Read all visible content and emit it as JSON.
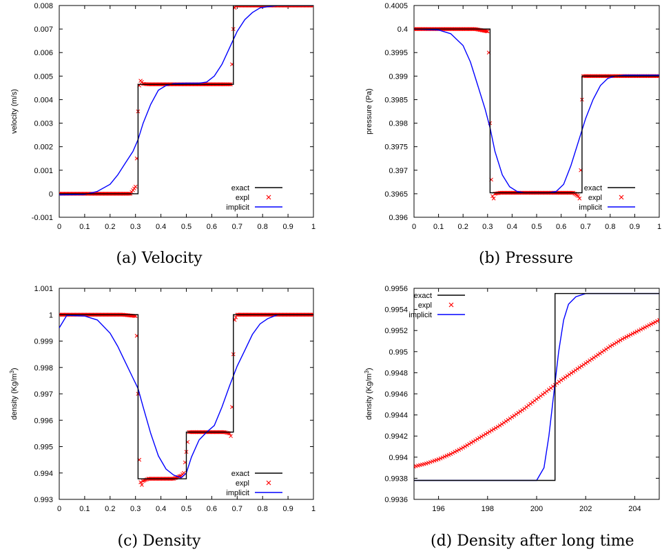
{
  "captions": [
    "(a) Velocity",
    "(b) Pressure",
    "(c) Density",
    "(d) Density after long time"
  ],
  "legend_labels": {
    "exact": "exact",
    "expl": "expl",
    "implicit": "implicit"
  },
  "colors": {
    "exact": "#000000",
    "expl": "#ff0000",
    "implicit": "#0000ff"
  },
  "chart_data": [
    {
      "type": "line",
      "caption": "(a) Velocity",
      "xlabel": "",
      "ylabel": "velocity (m/s)",
      "xlim": [
        0,
        1
      ],
      "ylim": [
        -0.001,
        0.008
      ],
      "xticks": [
        "0",
        "0.1",
        "0.2",
        "0.3",
        "0.4",
        "0.5",
        "0.6",
        "0.7",
        "0.8",
        "0.9",
        "1"
      ],
      "yticks": [
        "-0.001",
        "0",
        "0.001",
        "0.002",
        "0.003",
        "0.004",
        "0.005",
        "0.006",
        "0.007",
        "0.008"
      ],
      "legend": "bottom-right",
      "grid": false,
      "series": [
        {
          "name": "exact",
          "style": "line",
          "x": [
            0,
            0.31,
            0.31,
            0.685,
            0.685,
            1
          ],
          "y": [
            0,
            0,
            0.00465,
            0.00465,
            0.008,
            0.008
          ]
        },
        {
          "name": "expl",
          "style": "markers",
          "x": [
            0.0,
            0.05,
            0.1,
            0.15,
            0.2,
            0.25,
            0.28,
            0.3,
            0.305,
            0.31,
            0.315,
            0.32,
            0.325,
            0.33,
            0.35,
            0.4,
            0.45,
            0.5,
            0.55,
            0.6,
            0.65,
            0.675,
            0.68,
            0.685,
            0.69,
            0.695,
            0.7,
            0.75,
            0.8,
            0.85,
            0.9,
            0.95,
            1.0
          ],
          "y": [
            0,
            0,
            0,
            0,
            0,
            0,
            0,
            0.0003,
            0.0015,
            0.0035,
            0.0046,
            0.0048,
            0.00475,
            0.00467,
            0.00465,
            0.00465,
            0.00465,
            0.00465,
            0.00465,
            0.00465,
            0.00465,
            0.00465,
            0.0055,
            0.007,
            0.0079,
            0.008,
            0.008,
            0.008,
            0.008,
            0.008,
            0.008,
            0.008,
            0.008
          ]
        },
        {
          "name": "implicit",
          "style": "line",
          "x": [
            0.0,
            0.1,
            0.15,
            0.2,
            0.23,
            0.26,
            0.29,
            0.31,
            0.33,
            0.36,
            0.39,
            0.42,
            0.45,
            0.5,
            0.55,
            0.58,
            0.61,
            0.64,
            0.67,
            0.7,
            0.73,
            0.76,
            0.79,
            0.82,
            0.86,
            0.9,
            1.0
          ],
          "y": [
            -5e-05,
            -3e-05,
            0.0001,
            0.0004,
            0.0008,
            0.0013,
            0.0018,
            0.0023,
            0.003,
            0.0038,
            0.0044,
            0.0046,
            0.00468,
            0.0047,
            0.0047,
            0.00475,
            0.005,
            0.0055,
            0.0062,
            0.0069,
            0.0074,
            0.0077,
            0.0079,
            0.00795,
            0.008,
            0.008,
            0.008
          ]
        }
      ]
    },
    {
      "type": "line",
      "caption": "(b) Pressure",
      "xlabel": "",
      "ylabel": "pressure (Pa)",
      "xlim": [
        0,
        1
      ],
      "ylim": [
        0.396,
        0.4005
      ],
      "xticks": [
        "0",
        "0.1",
        "0.2",
        "0.3",
        "0.4",
        "0.5",
        "0.6",
        "0.7",
        "0.8",
        "0.9",
        "1"
      ],
      "yticks": [
        "0.396",
        "0.3965",
        "0.397",
        "0.3975",
        "0.398",
        "0.3985",
        "0.399",
        "0.3995",
        "0.4",
        "0.4005"
      ],
      "legend": "bottom-right",
      "grid": false,
      "series": [
        {
          "name": "exact",
          "style": "line",
          "x": [
            0,
            0.31,
            0.31,
            0.685,
            0.685,
            1
          ],
          "y": [
            0.4,
            0.4,
            0.39652,
            0.39652,
            0.399,
            0.399
          ]
        },
        {
          "name": "expl",
          "style": "markers",
          "x": [
            0.0,
            0.05,
            0.1,
            0.15,
            0.2,
            0.25,
            0.3,
            0.305,
            0.31,
            0.315,
            0.32,
            0.325,
            0.33,
            0.35,
            0.4,
            0.45,
            0.5,
            0.55,
            0.6,
            0.65,
            0.67,
            0.675,
            0.68,
            0.685,
            0.69,
            0.7,
            0.75,
            0.8,
            0.85,
            0.9,
            0.95,
            1.0
          ],
          "y": [
            0.4,
            0.4,
            0.4,
            0.4,
            0.4,
            0.4,
            0.39995,
            0.3995,
            0.398,
            0.3968,
            0.39645,
            0.3964,
            0.3965,
            0.39652,
            0.39652,
            0.39652,
            0.39652,
            0.39652,
            0.39652,
            0.39652,
            0.39645,
            0.3964,
            0.397,
            0.3985,
            0.399,
            0.399,
            0.399,
            0.399,
            0.399,
            0.399,
            0.399,
            0.399
          ]
        },
        {
          "name": "implicit",
          "style": "line",
          "x": [
            0.0,
            0.1,
            0.15,
            0.2,
            0.23,
            0.26,
            0.29,
            0.31,
            0.33,
            0.36,
            0.39,
            0.42,
            0.45,
            0.5,
            0.55,
            0.58,
            0.61,
            0.64,
            0.67,
            0.7,
            0.73,
            0.76,
            0.79,
            0.82,
            0.86,
            0.9,
            1.0
          ],
          "y": [
            0.4,
            0.39998,
            0.3999,
            0.39965,
            0.3993,
            0.3988,
            0.3983,
            0.3979,
            0.3974,
            0.3969,
            0.39665,
            0.39655,
            0.39652,
            0.39652,
            0.39652,
            0.39655,
            0.3967,
            0.3971,
            0.3976,
            0.3981,
            0.3985,
            0.3988,
            0.39895,
            0.399,
            0.39902,
            0.39902,
            0.39902
          ]
        }
      ]
    },
    {
      "type": "line",
      "caption": "(c) Density",
      "xlabel": "",
      "ylabel": "density (Kg/m3)",
      "xlim": [
        0,
        1
      ],
      "ylim": [
        0.993,
        1.001
      ],
      "xticks": [
        "0",
        "0.1",
        "0.2",
        "0.3",
        "0.4",
        "0.5",
        "0.6",
        "0.7",
        "0.8",
        "0.9",
        "1"
      ],
      "yticks": [
        "0.993",
        "0.994",
        "0.995",
        "0.996",
        "0.997",
        "0.998",
        "0.999",
        "1",
        "1.001"
      ],
      "legend": "bottom-right",
      "grid": false,
      "series": [
        {
          "name": "exact",
          "style": "line",
          "x": [
            0,
            0.31,
            0.31,
            0.5,
            0.5,
            0.685,
            0.685,
            1
          ],
          "y": [
            1.0,
            1.0,
            0.99378,
            0.99378,
            0.99555,
            0.99555,
            1.0,
            1.0
          ]
        },
        {
          "name": "expl",
          "style": "markers",
          "x": [
            0.0,
            0.05,
            0.1,
            0.15,
            0.2,
            0.25,
            0.3,
            0.305,
            0.31,
            0.315,
            0.32,
            0.325,
            0.33,
            0.35,
            0.4,
            0.45,
            0.48,
            0.49,
            0.5,
            0.51,
            0.52,
            0.55,
            0.6,
            0.65,
            0.67,
            0.675,
            0.68,
            0.685,
            0.69,
            0.7,
            0.75,
            0.8,
            0.85,
            0.9,
            0.95,
            1.0
          ],
          "y": [
            1.0,
            1.0,
            1.0,
            1.0,
            1.0,
            1.0,
            0.99995,
            0.9992,
            0.997,
            0.9945,
            0.99365,
            0.99355,
            0.9937,
            0.99378,
            0.99378,
            0.99378,
            0.9939,
            0.994,
            0.9948,
            0.99555,
            0.99555,
            0.99555,
            0.99555,
            0.99555,
            0.9955,
            0.9954,
            0.9965,
            0.9985,
            0.9998,
            1.0,
            1.0,
            1.0,
            1.0,
            1.0,
            1.0,
            1.0
          ]
        },
        {
          "name": "implicit",
          "style": "line",
          "x": [
            0.0,
            0.03,
            0.1,
            0.15,
            0.2,
            0.23,
            0.26,
            0.29,
            0.31,
            0.33,
            0.36,
            0.39,
            0.42,
            0.45,
            0.48,
            0.5,
            0.52,
            0.55,
            0.58,
            0.61,
            0.64,
            0.67,
            0.7,
            0.73,
            0.76,
            0.79,
            0.82,
            0.86,
            0.9,
            1.0
          ],
          "y": [
            0.9995,
            0.99998,
            0.99995,
            0.9998,
            0.9993,
            0.9988,
            0.9982,
            0.9976,
            0.9972,
            0.9965,
            0.9955,
            0.99465,
            0.99415,
            0.99392,
            0.99382,
            0.994,
            0.9946,
            0.99525,
            0.99555,
            0.9958,
            0.9965,
            0.9973,
            0.99805,
            0.99865,
            0.99925,
            0.99965,
            0.99985,
            1.0,
            1.0,
            1.0
          ]
        }
      ]
    },
    {
      "type": "line",
      "caption": "(d) Density after long time",
      "xlabel": "",
      "ylabel": "density (Kg/m3)",
      "xlim": [
        195,
        205
      ],
      "ylim": [
        0.9936,
        0.9956
      ],
      "xticks": [
        "196",
        "198",
        "200",
        "202",
        "204"
      ],
      "yticks": [
        "0.9936",
        "0.9938",
        "0.994",
        "0.9942",
        "0.9944",
        "0.9946",
        "0.9948",
        "0.995",
        "0.9952",
        "0.9954",
        "0.9956"
      ],
      "legend": "top-left",
      "grid": false,
      "series": [
        {
          "name": "exact",
          "style": "line",
          "x": [
            195,
            200.75,
            200.75,
            205
          ],
          "y": [
            0.99378,
            0.99378,
            0.99555,
            0.99555
          ]
        },
        {
          "name": "expl",
          "style": "markers",
          "x": [
            195.0,
            195.5,
            196.0,
            196.5,
            197.0,
            197.5,
            198.0,
            198.5,
            199.0,
            199.5,
            200.0,
            200.5,
            201.0,
            201.5,
            202.0,
            202.5,
            203.0,
            203.5,
            204.0,
            204.5,
            205.0
          ],
          "y": [
            0.99391,
            0.99394,
            0.99398,
            0.99403,
            0.99409,
            0.99416,
            0.99423,
            0.9943,
            0.99438,
            0.99446,
            0.99455,
            0.99464,
            0.99473,
            0.99481,
            0.99489,
            0.99497,
            0.99505,
            0.99512,
            0.99518,
            0.99524,
            0.9953
          ]
        },
        {
          "name": "implicit",
          "style": "line",
          "x": [
            195,
            199,
            200.0,
            200.3,
            200.5,
            200.7,
            200.9,
            201.1,
            201.3,
            201.6,
            202.0,
            202.5,
            205
          ],
          "y": [
            0.99378,
            0.99378,
            0.99378,
            0.9939,
            0.9942,
            0.9946,
            0.995,
            0.9953,
            0.99545,
            0.99552,
            0.99555,
            0.99555,
            0.99555
          ]
        }
      ]
    }
  ]
}
